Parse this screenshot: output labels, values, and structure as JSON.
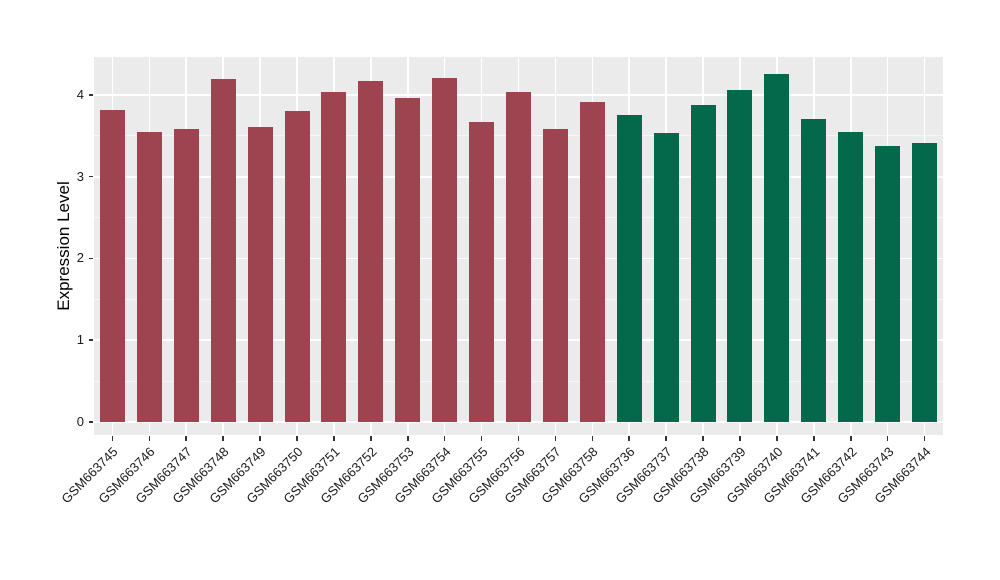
{
  "chart_data": {
    "type": "bar",
    "title": "",
    "xlabel": "",
    "ylabel": "Expression Level",
    "ylim": [
      0,
      4.46
    ],
    "yticks": [
      0,
      1,
      2,
      3,
      4
    ],
    "grid": "major-and-minor-horizontal, major-vertical, white-on-gray",
    "legend_position": "none",
    "x_tick_rotation_deg": 45,
    "categories": [
      "GSM663745",
      "GSM663746",
      "GSM663747",
      "GSM663748",
      "GSM663749",
      "GSM663750",
      "GSM663751",
      "GSM663752",
      "GSM663753",
      "GSM663754",
      "GSM663755",
      "GSM663756",
      "GSM663757",
      "GSM663758",
      "GSM663736",
      "GSM663737",
      "GSM663738",
      "GSM663739",
      "GSM663740",
      "GSM663741",
      "GSM663742",
      "GSM663743",
      "GSM663744"
    ],
    "values": [
      3.82,
      3.55,
      3.58,
      4.19,
      3.61,
      3.8,
      4.03,
      4.17,
      3.96,
      4.21,
      3.67,
      4.04,
      3.58,
      3.91,
      3.75,
      3.53,
      3.87,
      4.06,
      4.25,
      3.71,
      3.54,
      3.38,
      3.41
    ],
    "groups": [
      "group1",
      "group1",
      "group1",
      "group1",
      "group1",
      "group1",
      "group1",
      "group1",
      "group1",
      "group1",
      "group1",
      "group1",
      "group1",
      "group1",
      "group2",
      "group2",
      "group2",
      "group2",
      "group2",
      "group2",
      "group2",
      "group2",
      "group2"
    ],
    "group_colors": {
      "group1": "#9E4451",
      "group2": "#04684A"
    },
    "colors": {
      "panel_background": "#EBEBEB",
      "gridline": "#FFFFFF",
      "tick_label": "#1a1a1a",
      "axis_title": "#000000",
      "figure_background": "#FFFFFF"
    }
  }
}
